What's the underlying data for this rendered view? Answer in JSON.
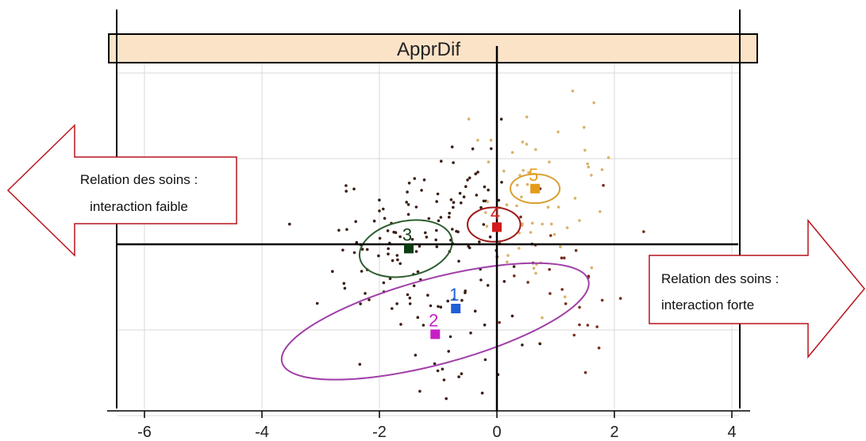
{
  "chart_data": {
    "type": "scatter",
    "title": "ApprDif",
    "xlim": [
      -6.3,
      4.3
    ],
    "ylim": [
      -3.1,
      3.2
    ],
    "x_ticks": [
      -6,
      -4,
      -2,
      0,
      2,
      4
    ],
    "x_tick_labels": [
      "-6",
      "-4",
      "-2",
      "0",
      "2",
      "4"
    ],
    "grid": true,
    "clusters": [
      {
        "label": "1",
        "x": -0.7,
        "y": -0.75,
        "color": "#1f5fd6"
      },
      {
        "label": "2",
        "x": -1.05,
        "y": -1.05,
        "color": "#c51fc5"
      },
      {
        "label": "3",
        "x": -1.5,
        "y": -0.05,
        "color": "#0d3d12"
      },
      {
        "label": "4",
        "x": 0.0,
        "y": 0.2,
        "color": "#d41a1a"
      },
      {
        "label": "5",
        "x": 0.65,
        "y": 0.65,
        "color": "#e69a1a"
      }
    ],
    "ellipses": [
      {
        "cluster": "1",
        "cx": -1.05,
        "cy": -0.9,
        "rx": 2.7,
        "ry": 0.5,
        "angle": -15,
        "color": "#a040a8"
      },
      {
        "cluster": "3",
        "cx": -1.55,
        "cy": -0.05,
        "rx": 0.8,
        "ry": 0.32,
        "angle": -12,
        "color": "#2e5e2e"
      },
      {
        "cluster": "4",
        "cx": -0.05,
        "cy": 0.23,
        "rx": 0.45,
        "ry": 0.2,
        "angle": 0,
        "color": "#a01818"
      },
      {
        "cluster": "5",
        "cx": 0.65,
        "cy": 0.65,
        "rx": 0.42,
        "ry": 0.17,
        "angle": 0,
        "color": "#d9a030"
      }
    ]
  },
  "annotations": {
    "left_arrow": {
      "line1": "Relation des soins :",
      "line2": "interaction faible"
    },
    "right_arrow": {
      "line1": "Relation des soins :",
      "line2": "interaction forte"
    }
  },
  "colors": {
    "strip": "#fbe3c8",
    "grid": "#d8d8d8",
    "arrow_border": "#b8141c",
    "points_dark": "#3a1f14",
    "points_light": "#d9b26a"
  }
}
